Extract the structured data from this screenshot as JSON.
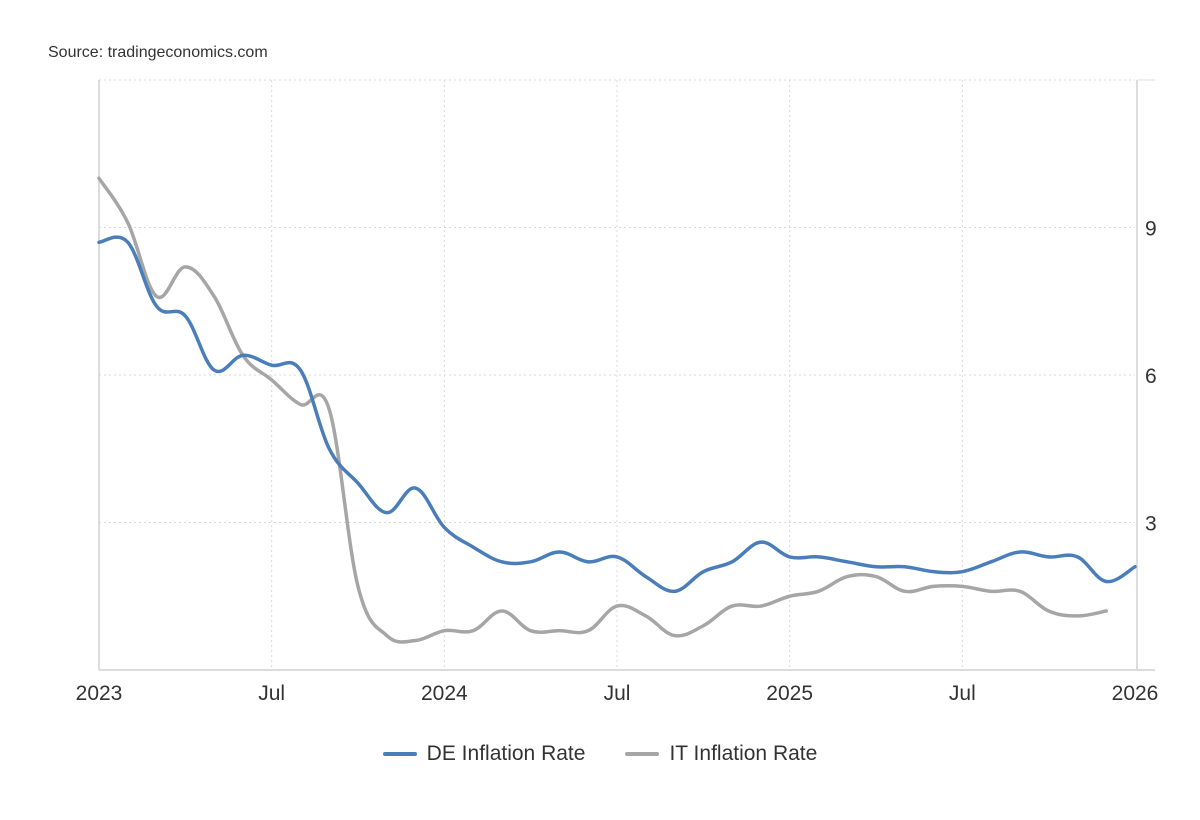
{
  "source": "Source: tradingeconomics.com",
  "chart_data": {
    "type": "line",
    "title": "",
    "xlabel": "",
    "ylabel": "",
    "ylim": [
      0,
      12
    ],
    "yticks": [
      3,
      6,
      9
    ],
    "ytick_labels": [
      "3",
      "6",
      "9"
    ],
    "y_axis_position": "right",
    "xtick_labels": [
      "2023",
      "Jul",
      "2024",
      "Jul",
      "2025",
      "Jul",
      "2026"
    ],
    "xtick_month_index": [
      0,
      6,
      12,
      18,
      24,
      30,
      36
    ],
    "x_start": "2023-01",
    "x_frequency": "monthly",
    "grid": true,
    "legend_position": "bottom",
    "series": [
      {
        "name": "DE Inflation Rate",
        "color": "#4a7ebb",
        "values": [
          8.7,
          8.7,
          7.4,
          7.2,
          6.1,
          6.4,
          6.2,
          6.1,
          4.5,
          3.8,
          3.2,
          3.7,
          2.9,
          2.5,
          2.2,
          2.2,
          2.4,
          2.2,
          2.3,
          1.9,
          1.6,
          2.0,
          2.2,
          2.6,
          2.3,
          2.3,
          2.2,
          2.1,
          2.1,
          2.0,
          2.0,
          2.2,
          2.4,
          2.3,
          2.3,
          1.8,
          2.1
        ]
      },
      {
        "name": "IT Inflation Rate",
        "color": "#a6a6a6",
        "values": [
          10.0,
          9.1,
          7.6,
          8.2,
          7.6,
          6.4,
          5.9,
          5.4,
          5.3,
          1.7,
          0.7,
          0.6,
          0.8,
          0.8,
          1.2,
          0.8,
          0.8,
          0.8,
          1.3,
          1.1,
          0.7,
          0.9,
          1.3,
          1.3,
          1.5,
          1.6,
          1.9,
          1.9,
          1.6,
          1.7,
          1.7,
          1.6,
          1.6,
          1.2,
          1.1,
          1.2
        ]
      }
    ]
  }
}
